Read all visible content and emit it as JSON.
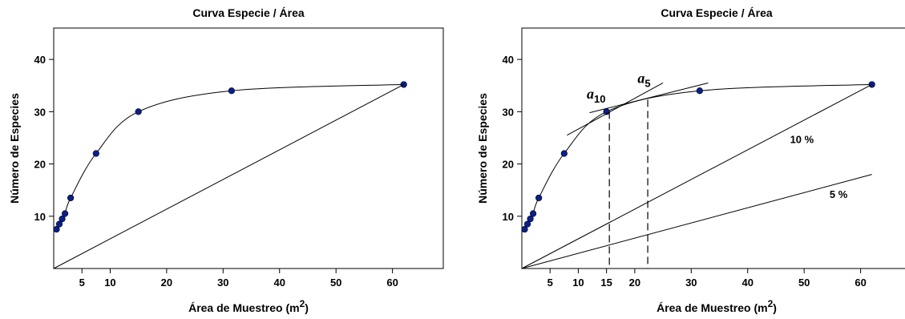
{
  "chart_data": [
    {
      "type": "scatter",
      "title": "Curva  Especie / Área",
      "xlabel": "Área de Muestreo (m",
      "xlabel_sup": "2",
      "ylabel": "Número de Especies",
      "xlim": [
        0,
        69
      ],
      "ylim": [
        0,
        46
      ],
      "xticks": [
        5,
        10,
        20,
        30,
        40,
        50,
        60
      ],
      "yticks": [
        10,
        20,
        30,
        40
      ],
      "point_color": "#0a1f8f",
      "series": [
        {
          "kind": "points",
          "x": [
            0.5,
            1.0,
            1.5,
            2.0,
            3.0,
            7.5,
            15.0,
            31.5,
            62.0
          ],
          "y": [
            7.5,
            8.5,
            9.5,
            10.5,
            13.5,
            22.0,
            30.0,
            34.0,
            35.2
          ]
        },
        {
          "kind": "line",
          "x": [
            0,
            62.0
          ],
          "y": [
            0,
            35.2
          ]
        }
      ],
      "annotations": []
    },
    {
      "type": "scatter",
      "title": "Curva  Especie / Área",
      "xlabel": "Área de Muestreo (m",
      "xlabel_sup": "2",
      "ylabel": "Número de Especies",
      "xlim": [
        0,
        69
      ],
      "ylim": [
        0,
        46
      ],
      "xticks": [
        5,
        10,
        15,
        20,
        30,
        40,
        50,
        60
      ],
      "yticks": [
        10,
        20,
        30,
        40
      ],
      "point_color": "#0a1f8f",
      "series": [
        {
          "kind": "points",
          "x": [
            0.5,
            1.0,
            1.5,
            2.0,
            3.0,
            7.5,
            15.0,
            31.5,
            62.0
          ],
          "y": [
            7.5,
            8.5,
            9.5,
            10.5,
            13.5,
            22.0,
            30.0,
            34.0,
            35.2
          ]
        },
        {
          "kind": "line",
          "label": "10 %",
          "x": [
            0,
            62.0
          ],
          "y": [
            0,
            35.2
          ]
        },
        {
          "kind": "line",
          "label": "5 %",
          "x": [
            0,
            62.0
          ],
          "y": [
            0,
            18.0
          ]
        },
        {
          "kind": "tangent",
          "label": "a10",
          "x": [
            8.0,
            25.0
          ],
          "y": [
            25.5,
            35.5
          ]
        },
        {
          "kind": "tangent",
          "label": "a5",
          "x": [
            12.0,
            33.0
          ],
          "y": [
            29.8,
            35.5
          ]
        },
        {
          "kind": "dashed-vline",
          "x": 15.5,
          "y": 30.0
        },
        {
          "kind": "dashed-vline",
          "x": 22.3,
          "y": 32.3
        }
      ],
      "annotations": [
        {
          "text": "a",
          "sub": "10",
          "x": 11.5,
          "y": 32.5
        },
        {
          "text": "a",
          "sub": "5",
          "x": 20.5,
          "y": 35.5
        },
        {
          "text": "10 %",
          "x": 47.5,
          "y": 24.0
        },
        {
          "text": "5 %",
          "x": 54.5,
          "y": 13.5
        }
      ]
    }
  ]
}
